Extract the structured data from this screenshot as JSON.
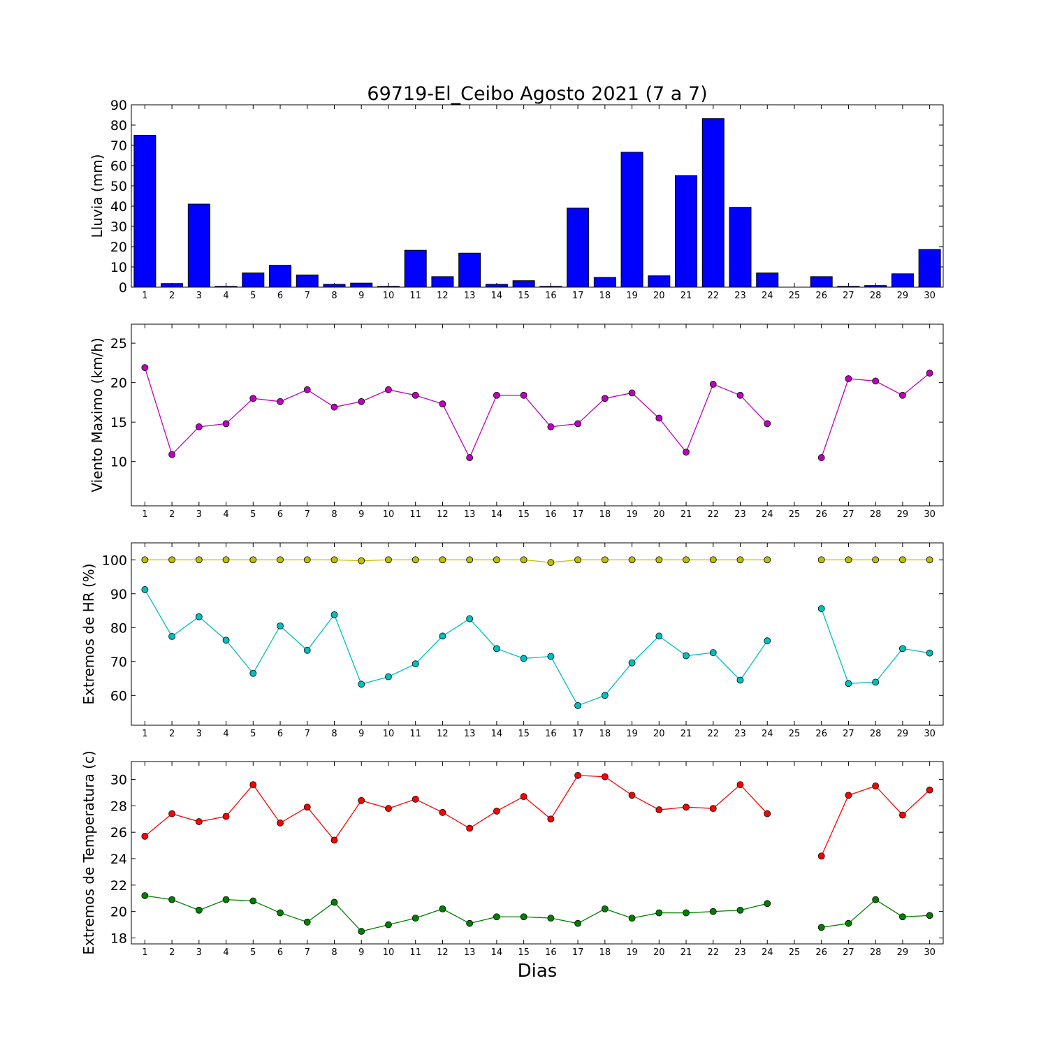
{
  "title": "69719-El_Ceibo Agosto 2021  (7 a 7)",
  "xlabel": "Dias",
  "colors": {
    "lluvia": "#0000ff",
    "viento": "#bf00bf",
    "hr_max": "#bfbf00",
    "hr_min": "#00bfbf",
    "temp_max": "#ff0000",
    "temp_min": "#008000"
  },
  "chart_data": [
    {
      "id": "lluvia",
      "type": "bar",
      "ylabel": "Lluvia (mm)",
      "x": [
        1,
        2,
        3,
        4,
        5,
        6,
        7,
        8,
        9,
        10,
        11,
        12,
        13,
        14,
        15,
        16,
        17,
        18,
        19,
        20,
        21,
        22,
        23,
        24,
        25,
        26,
        27,
        28,
        29,
        30
      ],
      "ylim": [
        0,
        90
      ],
      "yticks": [
        0,
        10,
        20,
        30,
        40,
        50,
        60,
        70,
        80,
        90
      ],
      "series": [
        {
          "values": [
            75.0,
            1.8,
            41.0,
            0.4,
            7.0,
            10.8,
            6.0,
            1.4,
            2.0,
            0.4,
            18.2,
            5.2,
            16.8,
            1.4,
            3.2,
            0.4,
            39.0,
            4.8,
            66.6,
            5.6,
            55.0,
            83.2,
            39.4,
            7.0,
            0,
            5.2,
            0.4,
            0.8,
            6.6,
            18.6
          ]
        }
      ]
    },
    {
      "id": "viento",
      "type": "line",
      "ylabel": "Viento Maximo (km/h)",
      "x": [
        1,
        2,
        3,
        4,
        5,
        6,
        7,
        8,
        9,
        10,
        11,
        12,
        13,
        14,
        15,
        16,
        17,
        18,
        19,
        20,
        21,
        22,
        23,
        24,
        25,
        26,
        27,
        28,
        29,
        30
      ],
      "ylim": [
        4.4,
        27.4
      ],
      "yticks": [
        10,
        15,
        20,
        25
      ],
      "series": [
        {
          "values": [
            21.9,
            10.9,
            14.4,
            14.8,
            18.0,
            17.6,
            19.1,
            16.9,
            17.6,
            19.1,
            18.4,
            17.3,
            10.5,
            18.4,
            18.4,
            14.4,
            14.8,
            18.0,
            18.7,
            15.5,
            11.2,
            19.8,
            18.4,
            14.8,
            null,
            10.5,
            20.5,
            20.2,
            18.4,
            21.2
          ]
        }
      ]
    },
    {
      "id": "hr",
      "type": "line",
      "ylabel": "Extremos de HR (%)",
      "x": [
        1,
        2,
        3,
        4,
        5,
        6,
        7,
        8,
        9,
        10,
        11,
        12,
        13,
        14,
        15,
        16,
        17,
        18,
        19,
        20,
        21,
        22,
        23,
        24,
        25,
        26,
        27,
        28,
        29,
        30
      ],
      "ylim": [
        51.2,
        105.0
      ],
      "yticks": [
        60,
        70,
        80,
        90,
        100
      ],
      "series": [
        {
          "values": [
            100,
            100,
            100,
            100,
            100,
            100,
            100,
            100,
            99.7,
            100,
            100,
            100,
            100,
            100,
            100,
            99.2,
            100,
            100,
            100,
            100,
            100,
            100,
            100,
            100,
            null,
            100,
            100,
            100,
            100,
            100
          ]
        },
        {
          "values": [
            91.2,
            77.4,
            83.2,
            76.3,
            66.5,
            80.5,
            73.3,
            83.8,
            63.3,
            65.5,
            69.3,
            77.5,
            82.6,
            73.8,
            70.9,
            71.5,
            57.0,
            60.0,
            69.6,
            77.5,
            71.7,
            72.6,
            64.5,
            76.1,
            null,
            85.6,
            63.5,
            63.9,
            73.8,
            72.5
          ]
        }
      ]
    },
    {
      "id": "temp",
      "type": "line",
      "ylabel": "Extremos de Temperatura (c)",
      "x": [
        1,
        2,
        3,
        4,
        5,
        6,
        7,
        8,
        9,
        10,
        11,
        12,
        13,
        14,
        15,
        16,
        17,
        18,
        19,
        20,
        21,
        22,
        23,
        24,
        25,
        26,
        27,
        28,
        29,
        30
      ],
      "ylim": [
        17.55,
        31.35
      ],
      "yticks": [
        18,
        20,
        22,
        24,
        26,
        28,
        30
      ],
      "series": [
        {
          "values": [
            25.7,
            27.4,
            26.8,
            27.2,
            29.6,
            26.7,
            27.9,
            25.4,
            28.4,
            27.8,
            28.5,
            27.5,
            26.3,
            27.6,
            28.7,
            27.0,
            30.3,
            30.2,
            28.8,
            27.7,
            27.9,
            27.8,
            29.6,
            27.4,
            null,
            24.2,
            28.8,
            29.5,
            27.3,
            29.2
          ]
        },
        {
          "values": [
            21.2,
            20.9,
            20.1,
            20.9,
            20.8,
            19.9,
            19.2,
            20.7,
            18.5,
            19.0,
            19.5,
            20.2,
            19.1,
            19.6,
            19.6,
            19.5,
            19.1,
            20.2,
            19.5,
            19.9,
            19.9,
            20.0,
            20.1,
            20.6,
            null,
            18.8,
            19.1,
            20.9,
            19.6,
            19.7
          ]
        }
      ]
    }
  ]
}
